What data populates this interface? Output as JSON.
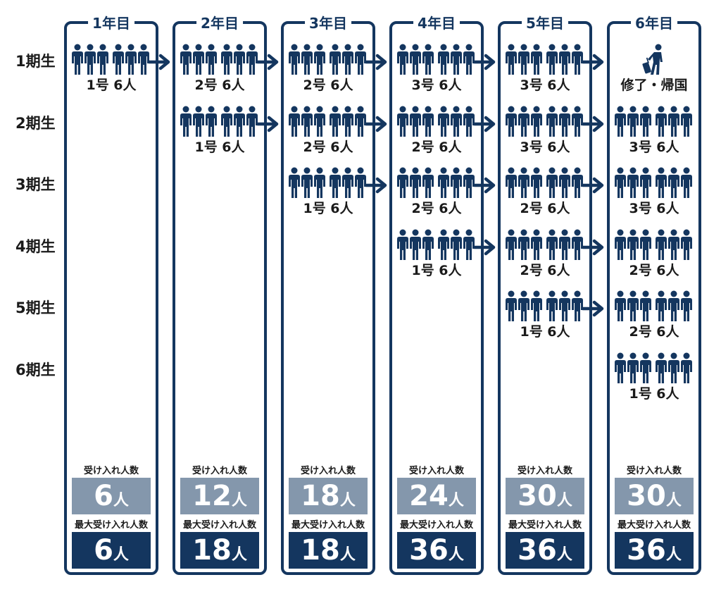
{
  "years": [
    "1年目",
    "2年目",
    "3年目",
    "4年目",
    "5年目",
    "6年目"
  ],
  "cohorts": [
    "1期生",
    "2期生",
    "3期生",
    "4期生",
    "5期生",
    "6期生"
  ],
  "groups": [
    {
      "year": 0,
      "cohort": 0,
      "label": "1号 6人"
    },
    {
      "year": 1,
      "cohort": 0,
      "label": "2号 6人"
    },
    {
      "year": 2,
      "cohort": 0,
      "label": "2号 6人"
    },
    {
      "year": 3,
      "cohort": 0,
      "label": "3号 6人"
    },
    {
      "year": 4,
      "cohort": 0,
      "label": "3号 6人"
    },
    {
      "year": 5,
      "cohort": 0,
      "label": "修了・帰国",
      "icon": "traveler"
    },
    {
      "year": 1,
      "cohort": 1,
      "label": "1号 6人"
    },
    {
      "year": 2,
      "cohort": 1,
      "label": "2号 6人"
    },
    {
      "year": 3,
      "cohort": 1,
      "label": "2号 6人"
    },
    {
      "year": 4,
      "cohort": 1,
      "label": "3号 6人"
    },
    {
      "year": 5,
      "cohort": 1,
      "label": "3号 6人"
    },
    {
      "year": 2,
      "cohort": 2,
      "label": "1号 6人"
    },
    {
      "year": 3,
      "cohort": 2,
      "label": "2号 6人"
    },
    {
      "year": 4,
      "cohort": 2,
      "label": "2号 6人"
    },
    {
      "year": 5,
      "cohort": 2,
      "label": "3号 6人"
    },
    {
      "year": 3,
      "cohort": 3,
      "label": "1号 6人"
    },
    {
      "year": 4,
      "cohort": 3,
      "label": "2号 6人"
    },
    {
      "year": 5,
      "cohort": 3,
      "label": "2号 6人"
    },
    {
      "year": 4,
      "cohort": 4,
      "label": "1号 6人"
    },
    {
      "year": 5,
      "cohort": 4,
      "label": "2号 6人"
    },
    {
      "year": 5,
      "cohort": 5,
      "label": "1号 6人"
    }
  ],
  "summary": {
    "accept_label": "受け入れ人数",
    "max_label": "最大受け入れ人数",
    "unit": "人",
    "accept_values": [
      "6",
      "12",
      "18",
      "24",
      "30",
      "30"
    ],
    "max_values": [
      "6",
      "18",
      "18",
      "36",
      "36",
      "36"
    ]
  },
  "colors": {
    "navy": "#14365f",
    "gray_blue": "#8497ac"
  }
}
